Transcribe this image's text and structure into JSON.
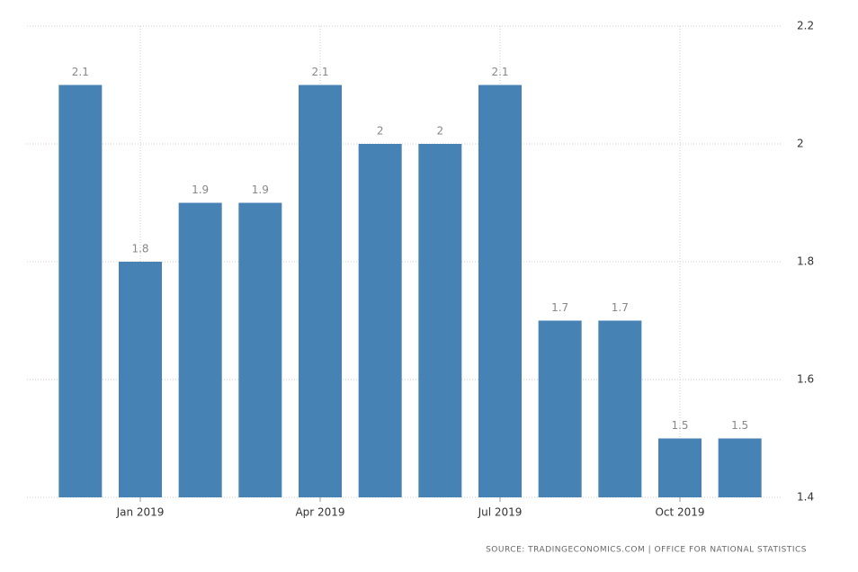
{
  "chart_data": {
    "type": "bar",
    "categories": [
      null,
      "Jan 2019",
      null,
      null,
      "Apr 2019",
      null,
      null,
      "Jul 2019",
      null,
      null,
      "Oct 2019",
      null
    ],
    "values": [
      2.1,
      1.8,
      1.9,
      1.9,
      2.1,
      2,
      2,
      2.1,
      1.7,
      1.7,
      1.5,
      1.5
    ],
    "color": "#4682b4",
    "ylim": [
      1.4,
      2.2
    ],
    "yticks": [
      1.4,
      1.6,
      1.8,
      2,
      2.2
    ],
    "grid": true,
    "source": "SOURCE: TRADINGECONOMICS.COM | OFFICE FOR NATIONAL STATISTICS"
  }
}
